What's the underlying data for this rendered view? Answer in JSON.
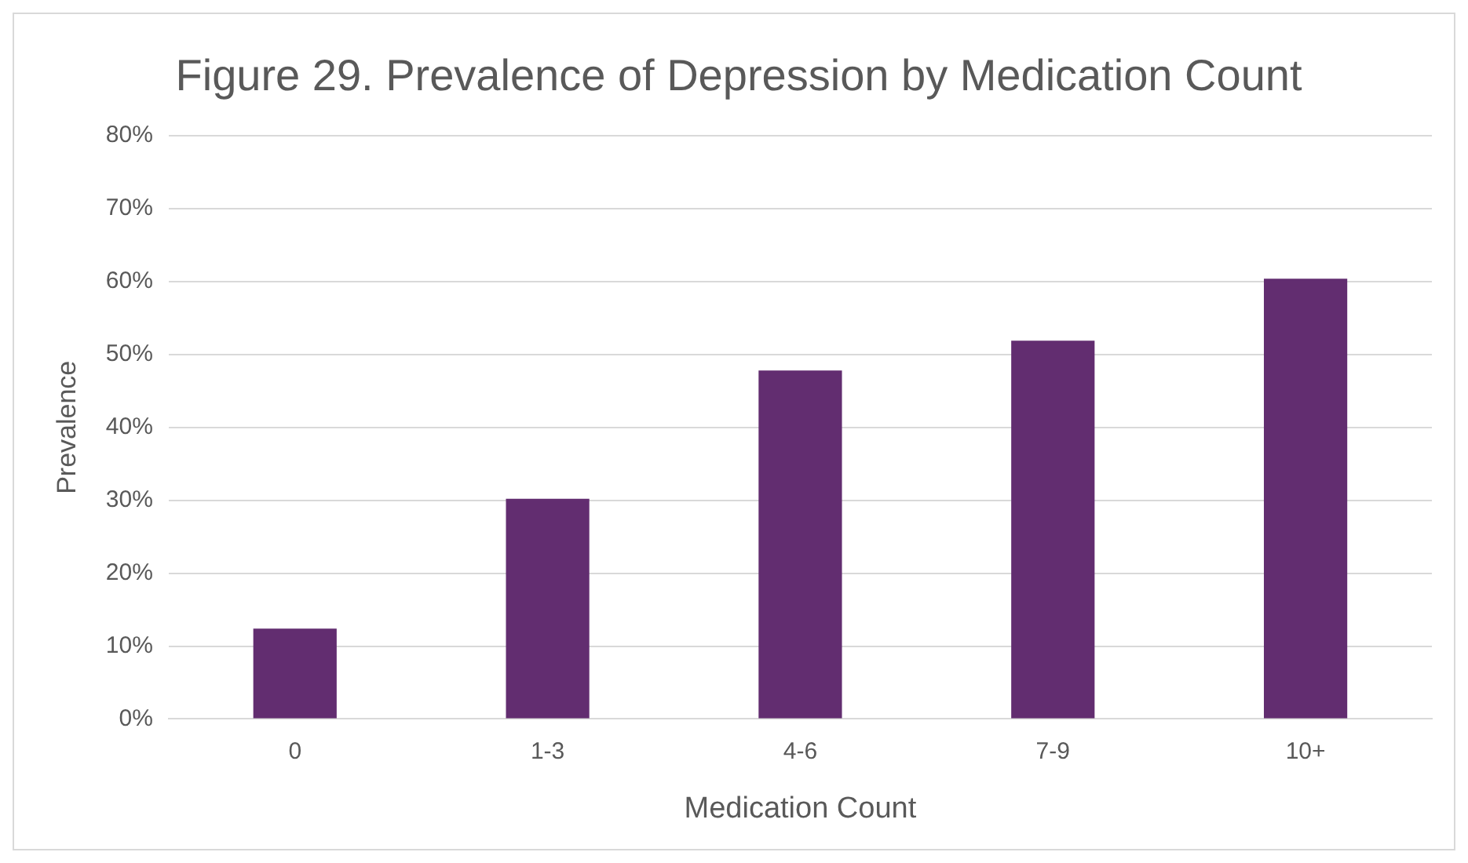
{
  "chart_data": {
    "type": "bar",
    "title": "Figure 29. Prevalence of Depression by Medication Count",
    "xlabel": "Medication Count",
    "ylabel": "Prevalence",
    "categories": [
      "0",
      "1-3",
      "4-6",
      "7-9",
      "10+"
    ],
    "values": [
      12.4,
      30.2,
      47.8,
      51.9,
      60.4
    ],
    "color": "#622d70",
    "ylim": [
      0,
      80
    ],
    "yticks": [
      {
        "value": 0,
        "label": "0%"
      },
      {
        "value": 10,
        "label": "10%"
      },
      {
        "value": 20,
        "label": "20%"
      },
      {
        "value": 30,
        "label": "30%"
      },
      {
        "value": 40,
        "label": "40%"
      },
      {
        "value": 50,
        "label": "50%"
      },
      {
        "value": 60,
        "label": "60%"
      },
      {
        "value": 70,
        "label": "70%"
      },
      {
        "value": 80,
        "label": "80%"
      }
    ],
    "grid": "y",
    "legend": false
  }
}
